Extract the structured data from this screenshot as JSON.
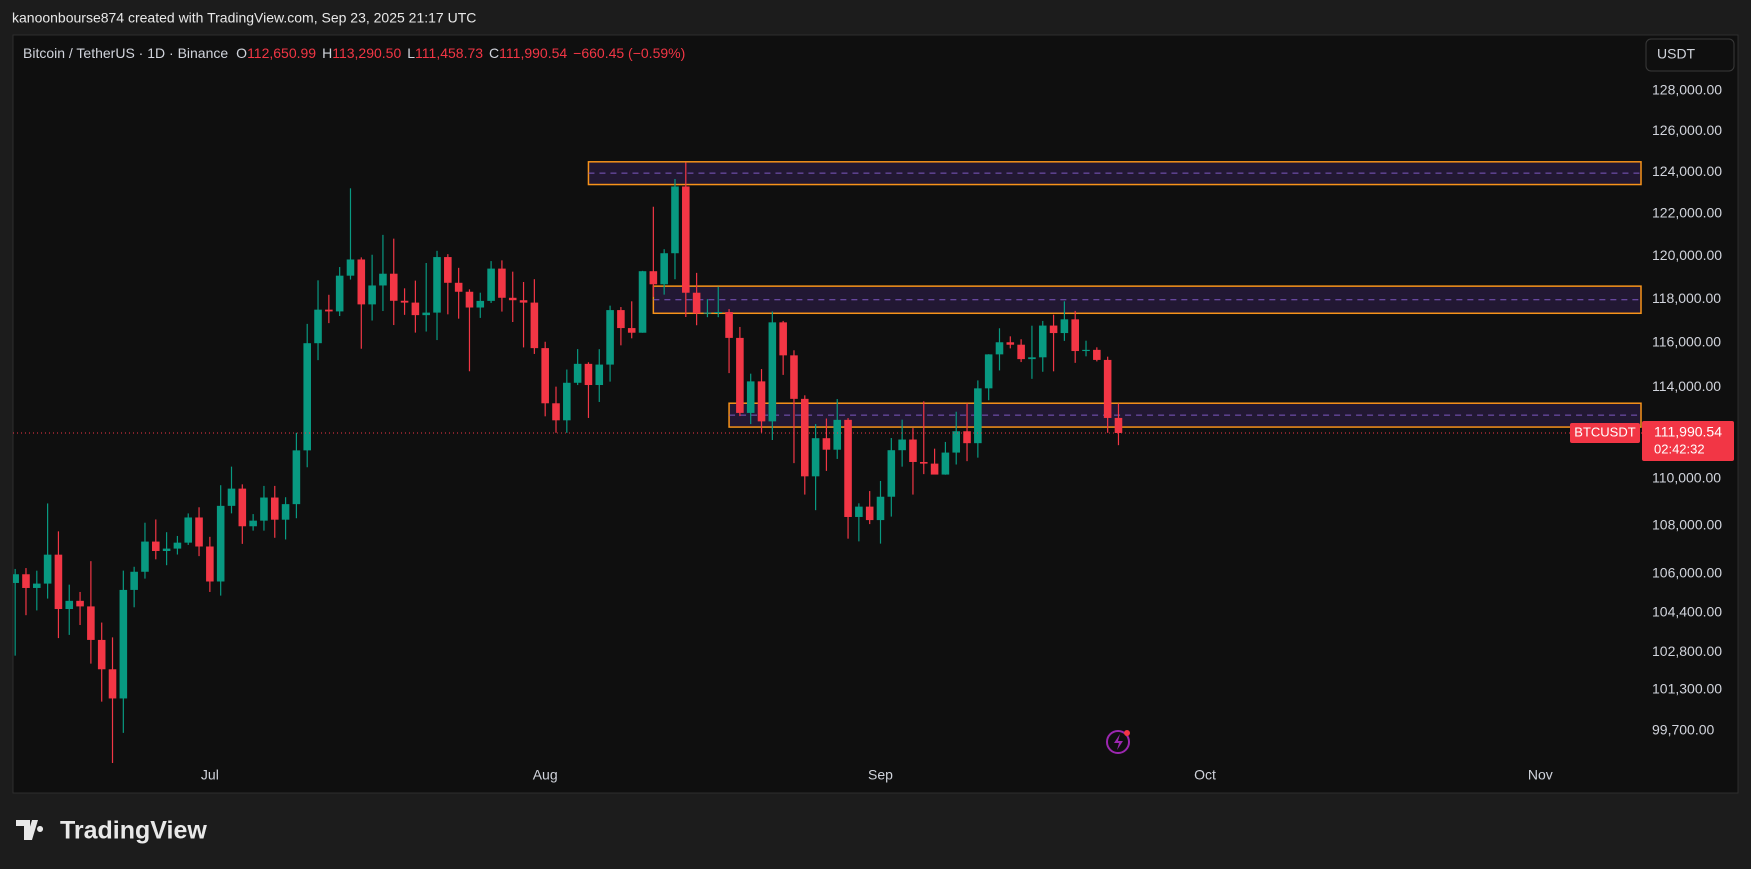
{
  "header": "kanoonbourse874 created with TradingView.com, Sep 23, 2025 21:17 UTC",
  "currency_button": "USDT",
  "logo": "TradingView",
  "legend": {
    "symbol": "Bitcoin / TetherUS · 1D · Binance",
    "open_key": "O",
    "open": "112,650.99",
    "high_key": "H",
    "high": "113,290.50",
    "low_key": "L",
    "low": "111,458.73",
    "close_key": "C",
    "close": "111,990.54",
    "change": "−660.45 (−0.59%)"
  },
  "chart_data": {
    "type": "candlestick",
    "symbol_label": "BTCUSDT",
    "last_price_label": "111,990.54",
    "countdown": "02:42:32",
    "up_color": "#089981",
    "down_color": "#f23645",
    "log_scale": true,
    "grid": false,
    "xlim": [
      -0.2,
      150.4
    ],
    "ylim": [
      98450,
      130820
    ],
    "xticks": [
      {
        "value": 18,
        "label": "Jul"
      },
      {
        "value": 49,
        "label": "Aug"
      },
      {
        "value": 80,
        "label": "Sep"
      },
      {
        "value": 110,
        "label": "Oct"
      },
      {
        "value": 141,
        "label": "Nov"
      }
    ],
    "yticks": [
      {
        "value": 128000,
        "label": "128,000.00"
      },
      {
        "value": 126000,
        "label": "126,000.00"
      },
      {
        "value": 124000,
        "label": "124,000.00"
      },
      {
        "value": 122000,
        "label": "122,000.00"
      },
      {
        "value": 120000,
        "label": "120,000.00"
      },
      {
        "value": 118000,
        "label": "118,000.00"
      },
      {
        "value": 116000,
        "label": "116,000.00"
      },
      {
        "value": 114000,
        "label": "114,000.00"
      },
      {
        "value": 110000,
        "label": "110,000.00"
      },
      {
        "value": 108000,
        "label": "108,000.00"
      },
      {
        "value": 106000,
        "label": "106,000.00"
      },
      {
        "value": 104400,
        "label": "104,400.00"
      },
      {
        "value": 102800,
        "label": "102,800.00"
      },
      {
        "value": 101300,
        "label": "101,300.00"
      },
      {
        "value": 99700,
        "label": "99,700.00"
      }
    ],
    "zones": [
      {
        "from": 53,
        "top": 124500,
        "bottom": 123400
      },
      {
        "from": 59,
        "top": 118600,
        "bottom": 117350
      },
      {
        "from": 66,
        "top": 113300,
        "bottom": 112250
      }
    ],
    "zone_color": "#f7931a",
    "open": [
      105620,
      105980,
      105414,
      105594,
      106794,
      104551,
      104886,
      104658,
      103297,
      102120,
      100963,
      105334,
      106083,
      107341,
      106947,
      107047,
      107296,
      108356,
      107135,
      105681,
      108849,
      109584,
      107985,
      108222,
      109203,
      108262,
      108922,
      111233,
      115987,
      117516,
      117435,
      119086,
      119841,
      117758,
      118631,
      119177,
      117924,
      117840,
      117265,
      117380,
      119954,
      118755,
      118340,
      117614,
      117919,
      119415,
      118062,
      117950,
      117840,
      115764,
      113297,
      112546,
      114208,
      115055,
      114108,
      115022,
      117496,
      116674,
      116462,
      119294,
      118686,
      120134,
      123306,
      118295,
      117342,
      117380,
      117405,
      116227,
      112872,
      114271,
      112500,
      116935,
      115438,
      113493,
      110111,
      111763,
      111262,
      112566,
      108377,
      108816,
      108246,
      109237,
      111240,
      111705,
      110730,
      110659,
      110187,
      111137,
      112066,
      111546,
      113960,
      115482,
      116029,
      115918,
      115268,
      115349,
      116788,
      116447,
      117073,
      115632,
      115685,
      115232,
      112650.99
    ],
    "high": [
      106200,
      106237,
      106128,
      108952,
      107771,
      105550,
      105250,
      106524,
      104000,
      103400,
      106128,
      106290,
      108135,
      108272,
      107735,
      107577,
      108528,
      108789,
      107540,
      109730,
      110529,
      109767,
      108500,
      109700,
      109700,
      109216,
      111999,
      116868,
      118869,
      118200,
      119488,
      123218,
      119940,
      120063,
      120998,
      120820,
      118499,
      118856,
      119676,
      120247,
      120090,
      119450,
      118451,
      118297,
      119766,
      119800,
      119273,
      118792,
      118922,
      116052,
      114036,
      114800,
      115720,
      115127,
      115716,
      117700,
      117636,
      117900,
      119311,
      122335,
      120324,
      123667,
      124474,
      119216,
      117999,
      118575,
      117543,
      116725,
      114615,
      114821,
      117429,
      117000,
      115666,
      113650,
      112382,
      112625,
      113485,
      112644,
      108957,
      109480,
      109912,
      111771,
      112575,
      112206,
      113384,
      111307,
      111600,
      112924,
      113293,
      114313,
      115488,
      116665,
      116298,
      116165,
      116782,
      117000,
      117286,
      117900,
      117459,
      116100,
      115800,
      115379,
      113290.5
    ],
    "low": [
      102664,
      104300,
      104494,
      104978,
      103371,
      103500,
      103900,
      102345,
      100837,
      98200,
      99613,
      104622,
      105800,
      106600,
      106355,
      106800,
      107200,
      106733,
      105250,
      105100,
      108530,
      107245,
      107800,
      107800,
      107500,
      107429,
      108324,
      110500,
      115222,
      116900,
      117224,
      118905,
      115736,
      117017,
      117453,
      116812,
      117277,
      116467,
      116516,
      116128,
      117301,
      117103,
      114723,
      117138,
      117825,
      117427,
      116950,
      115796,
      115500,
      112722,
      112000,
      112000,
      114107,
      112650,
      113355,
      114259,
      115890,
      116208,
      116462,
      118100,
      118207,
      118920,
      117180,
      116803,
      117172,
      117172,
      114640,
      112732,
      112380,
      112015,
      111684,
      114560,
      110680,
      109329,
      108666,
      110345,
      110862,
      107463,
      107350,
      108076,
      107255,
      108393,
      110528,
      109329,
      110206,
      110207,
      110180,
      110621,
      110766,
      110917,
      113432,
      114760,
      115753,
      115135,
      114384,
      114700,
      114720,
      116092,
      115100,
      115394,
      115166,
      112000,
      111458.73
    ],
    "close": [
      105980,
      105414,
      105594,
      106794,
      104551,
      104886,
      104658,
      103297,
      102120,
      100963,
      105334,
      106083,
      107341,
      106947,
      107047,
      107296,
      108356,
      107135,
      105681,
      108849,
      109584,
      107985,
      108222,
      109203,
      108262,
      108922,
      111233,
      115987,
      117516,
      117435,
      119086,
      119841,
      117758,
      118631,
      119177,
      117924,
      117840,
      117265,
      117380,
      119954,
      118755,
      118340,
      117614,
      117919,
      119415,
      118062,
      117950,
      117840,
      115764,
      113297,
      112546,
      114208,
      115055,
      114108,
      115022,
      117496,
      116674,
      116462,
      119294,
      118686,
      120134,
      123306,
      118295,
      117342,
      117380,
      117405,
      116227,
      112872,
      114271,
      112500,
      116935,
      115438,
      113493,
      110111,
      111763,
      111262,
      112566,
      108377,
      108816,
      108246,
      109237,
      111240,
      111705,
      110730,
      110659,
      110187,
      111137,
      112066,
      111546,
      113960,
      115482,
      116029,
      115918,
      115268,
      115349,
      116788,
      116447,
      117073,
      115632,
      115685,
      115232,
      112650,
      111990.54
    ]
  }
}
